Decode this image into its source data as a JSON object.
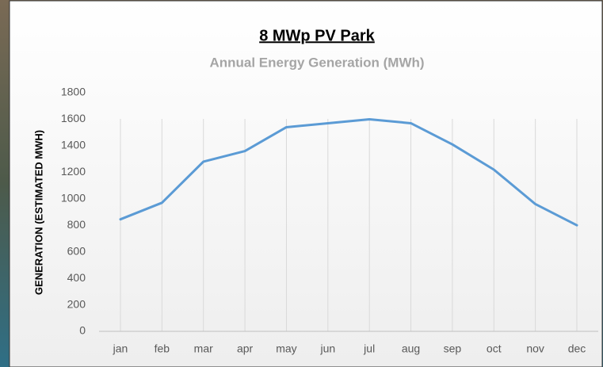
{
  "chart_data": {
    "type": "line",
    "title": "8 MWp PV Park",
    "subtitle": "Annual Energy Generation (MWh)",
    "y_label": "GENERATION (ESTIMATED MWH)",
    "categories": [
      "jan",
      "feb",
      "mar",
      "apr",
      "may",
      "jun",
      "jul",
      "aug",
      "sep",
      "oct",
      "nov",
      "dec"
    ],
    "values": [
      845,
      970,
      1280,
      1360,
      1540,
      1570,
      1600,
      1570,
      1410,
      1220,
      960,
      800
    ],
    "color": "#5b9bd5",
    "ylim": [
      0,
      1800
    ],
    "yticks": [
      0,
      200,
      400,
      600,
      800,
      1000,
      1200,
      1400,
      1600,
      1800
    ]
  }
}
